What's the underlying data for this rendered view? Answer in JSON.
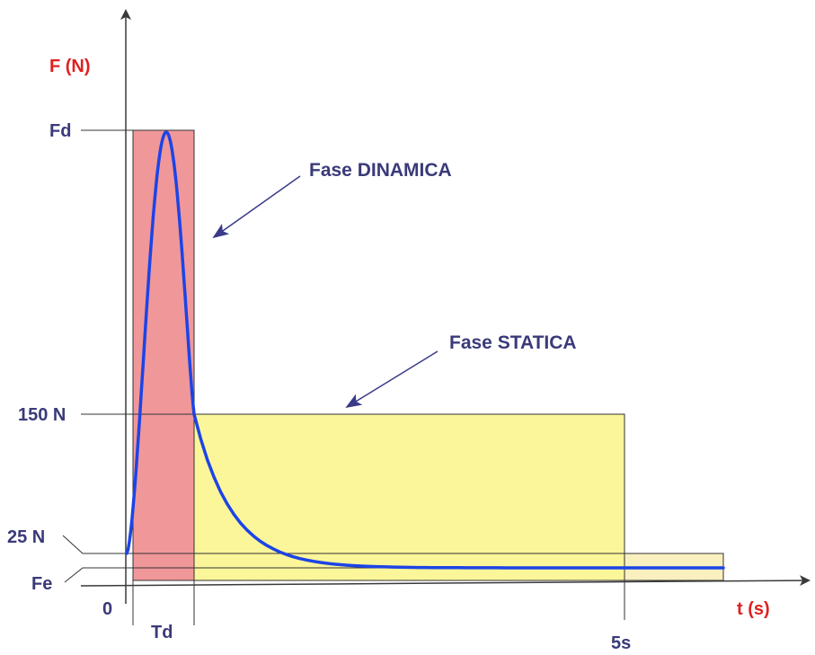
{
  "axes": {
    "y_label": "F (N)",
    "x_label": "t (s)",
    "origin_label": "0"
  },
  "y_ticks": {
    "fd": "Fd",
    "n150": "150 N",
    "n25": "25 N",
    "fe": "Fe"
  },
  "x_ticks": {
    "td": "Td",
    "five_s": "5s"
  },
  "phases": {
    "dynamic": "Fase DINAMICA",
    "static": "Fase STATICA"
  },
  "colors": {
    "dynamic_zone": "#f0979a",
    "static_zone": "#fbf69a",
    "low_zone": "#f9efbf",
    "curve": "#1c44e6",
    "axis": "#3a3a3a",
    "label": "#3a3a7a",
    "axis_title": "#e02020",
    "arrow": "#3a3a8a"
  }
}
